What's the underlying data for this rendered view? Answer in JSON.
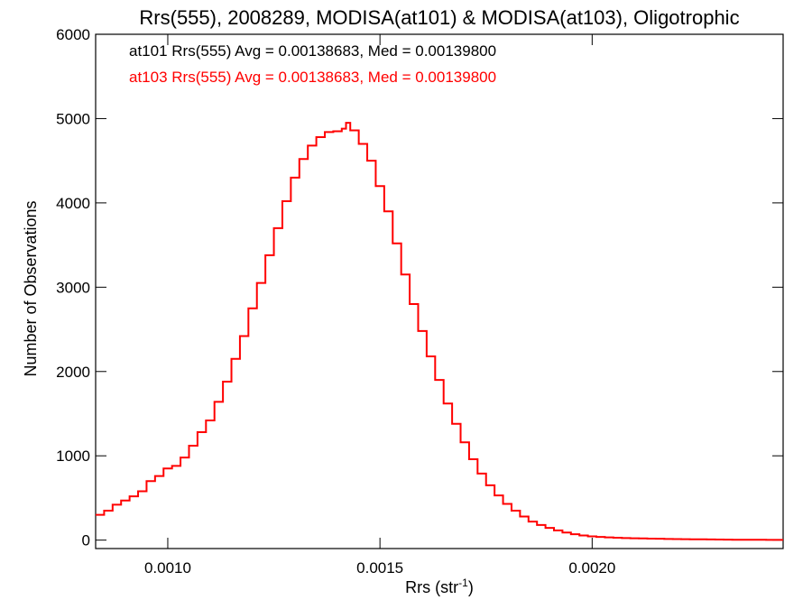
{
  "chart_data": {
    "type": "histogram-step",
    "title": "Rrs(555), 2008289, MODISA(at101) & MODISA(at103), Oligotrophic",
    "xlabel_main": "Rrs (str",
    "xlabel_sup": "-1",
    "xlabel_close": ")",
    "ylabel": "Number of Observations",
    "xlim": [
      0.00083,
      0.00245
    ],
    "ylim": [
      -100,
      6000
    ],
    "xticks": [
      {
        "value": 0.001,
        "label": "0.0010"
      },
      {
        "value": 0.0015,
        "label": "0.0015"
      },
      {
        "value": 0.002,
        "label": "0.0020"
      }
    ],
    "yticks": [
      {
        "value": 0,
        "label": "0"
      },
      {
        "value": 1000,
        "label": "1000"
      },
      {
        "value": 2000,
        "label": "2000"
      },
      {
        "value": 3000,
        "label": "3000"
      },
      {
        "value": 4000,
        "label": "4000"
      },
      {
        "value": 5000,
        "label": "5000"
      },
      {
        "value": 6000,
        "label": "6000"
      }
    ],
    "annotations": [
      {
        "text": "at101 Rrs(555) Avg = 0.00138683, Med = 0.00139800",
        "color": "#000000"
      },
      {
        "text": "at103 Rrs(555) Avg = 0.00138683, Med = 0.00139800",
        "color": "#ff0000"
      }
    ],
    "series": [
      {
        "color": "#ff0000",
        "x": [
          0.00083,
          0.00085,
          0.00087,
          0.00089,
          0.00091,
          0.00093,
          0.00095,
          0.00097,
          0.00099,
          0.00101,
          0.00103,
          0.00105,
          0.00107,
          0.00109,
          0.00111,
          0.00113,
          0.00115,
          0.00117,
          0.00119,
          0.00121,
          0.00123,
          0.00125,
          0.00127,
          0.00129,
          0.00131,
          0.00133,
          0.00135,
          0.00137,
          0.00139,
          0.00141,
          0.00142,
          0.00143,
          0.00145,
          0.00147,
          0.00149,
          0.00151,
          0.00153,
          0.00155,
          0.00157,
          0.00159,
          0.00161,
          0.00163,
          0.00165,
          0.00167,
          0.00169,
          0.00171,
          0.00173,
          0.00175,
          0.00177,
          0.00179,
          0.00181,
          0.00183,
          0.00185,
          0.00187,
          0.00189,
          0.00191,
          0.00193,
          0.00195,
          0.00197,
          0.00199,
          0.00201,
          0.00203,
          0.00205,
          0.00207,
          0.00209,
          0.00211,
          0.00213,
          0.00215,
          0.00217,
          0.00219,
          0.00221,
          0.00223,
          0.00225,
          0.00227,
          0.00229,
          0.00231,
          0.00233,
          0.00235,
          0.00237,
          0.00239,
          0.00241,
          0.00243,
          0.00245
        ],
        "values": [
          300,
          350,
          420,
          470,
          520,
          580,
          700,
          760,
          850,
          880,
          980,
          1120,
          1280,
          1420,
          1640,
          1880,
          2150,
          2420,
          2750,
          3050,
          3380,
          3700,
          4020,
          4300,
          4520,
          4680,
          4780,
          4840,
          4850,
          4880,
          4950,
          4860,
          4700,
          4500,
          4200,
          3900,
          3520,
          3150,
          2800,
          2480,
          2180,
          1900,
          1620,
          1380,
          1160,
          960,
          790,
          650,
          530,
          430,
          350,
          280,
          220,
          180,
          145,
          115,
          90,
          70,
          55,
          45,
          38,
          32,
          28,
          25,
          22,
          20,
          18,
          16,
          14,
          12,
          11,
          10,
          9,
          8,
          7,
          6,
          5,
          5,
          4,
          4,
          3,
          3,
          3
        ]
      }
    ]
  }
}
